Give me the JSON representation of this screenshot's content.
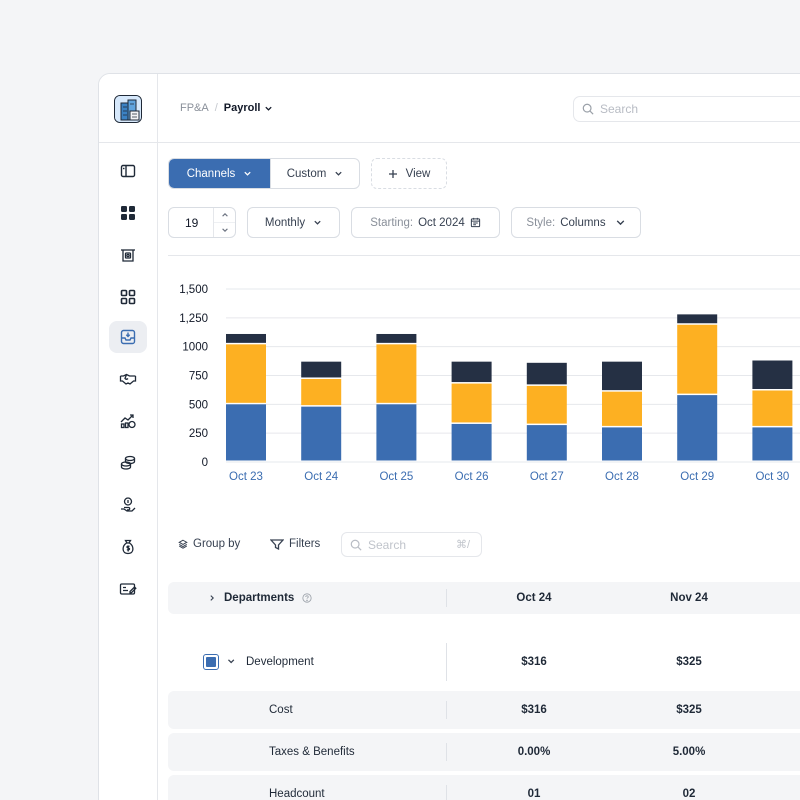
{
  "breadcrumb": {
    "root": "FP&A",
    "separator": "/",
    "current": "Payroll"
  },
  "search": {
    "placeholder": "Search"
  },
  "view_tabs": [
    {
      "label": "Channels",
      "active": true
    },
    {
      "label": "Custom",
      "active": false
    }
  ],
  "add_view_label": "View",
  "controls": {
    "count_value": "19",
    "period": "Monthly",
    "starting_label": "Starting:",
    "starting_value": "Oct 2024",
    "style_label": "Style:",
    "style_value": "Columns"
  },
  "colors": {
    "accent": "#3b6db1",
    "series_a": "#3b6db1",
    "series_b": "#fdb022",
    "series_c": "#253044"
  },
  "sidebar": {
    "items": [
      {
        "icon": "sidebar-toggle-icon"
      },
      {
        "icon": "dashboard-grid-icon"
      },
      {
        "icon": "atm-cash-icon"
      },
      {
        "icon": "apps-grid-icon"
      },
      {
        "icon": "payroll-inbox-icon",
        "active": true
      },
      {
        "icon": "handshake-icon"
      },
      {
        "icon": "growth-chart-icon"
      },
      {
        "icon": "coins-stack-icon"
      },
      {
        "icon": "hand-coin-icon"
      },
      {
        "icon": "money-bag-icon"
      },
      {
        "icon": "check-edit-icon"
      }
    ]
  },
  "chart_data": {
    "type": "bar",
    "stacked": true,
    "categories": [
      "Oct 23",
      "Oct 24",
      "Oct 25",
      "Oct 26",
      "Oct 27",
      "Oct 28",
      "Oct 29",
      "Oct 30"
    ],
    "series": [
      {
        "values": [
          500,
          480,
          500,
          330,
          320,
          300,
          580,
          300
        ]
      },
      {
        "values": [
          520,
          240,
          520,
          350,
          340,
          310,
          610,
          320
        ]
      },
      {
        "values": [
          90,
          150,
          90,
          190,
          200,
          260,
          90,
          260
        ]
      }
    ],
    "ylim": [
      0,
      1500
    ],
    "yticks": [
      "1,500",
      "1,250",
      "1000",
      "750",
      "500",
      "250",
      "0"
    ],
    "grid": true
  },
  "table_toolbar": {
    "group_by": "Group by",
    "filters": "Filters",
    "search_placeholder": "Search",
    "shortcut": "⌘/"
  },
  "table": {
    "header": {
      "label": "Departments",
      "col1": "Oct 24",
      "col2": "Nov 24"
    },
    "rows": [
      {
        "label": "Development",
        "col1": "$316",
        "col2": "$325"
      },
      {
        "label": "Cost",
        "col1": "$316",
        "col2": "$325"
      },
      {
        "label": "Taxes & Benefits",
        "col1": "0.00%",
        "col2": "5.00%"
      },
      {
        "label": "Headcount",
        "col1": "01",
        "col2": "02"
      }
    ]
  }
}
